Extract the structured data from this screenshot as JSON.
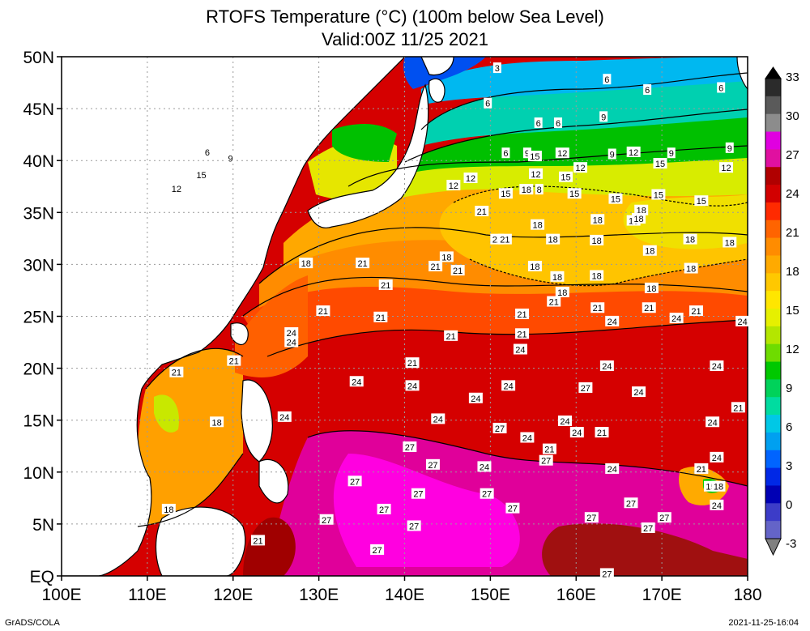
{
  "title_line1": "RTOFS Temperature (°C) (100m below Sea Level)",
  "title_line2": "Valid:00Z 11/25 2021",
  "footer_left": "GrADS/COLA",
  "footer_right": "2021-11-25-16:04",
  "map": {
    "lon_range": [
      100,
      180
    ],
    "lat_range": [
      0,
      50
    ],
    "lon_ticks": [
      "100E",
      "110E",
      "120E",
      "130E",
      "140E",
      "150E",
      "160E",
      "170E",
      "180"
    ],
    "lat_ticks": [
      "EQ",
      "5N",
      "10N",
      "15N",
      "20N",
      "25N",
      "30N",
      "35N",
      "40N",
      "45N",
      "50N"
    ],
    "grid": "dotted"
  },
  "colorbar": {
    "labels": [
      "33",
      "30",
      "27",
      "24",
      "21",
      "18",
      "15",
      "12",
      "9",
      "6",
      "3",
      "0",
      "-3"
    ],
    "colors": [
      "#2b2b2b",
      "#5a5a5a",
      "#8c8c8c",
      "#e000e0",
      "#e010a0",
      "#b00000",
      "#d20000",
      "#ff2a00",
      "#ff6400",
      "#ff8c00",
      "#ffaa00",
      "#ffc800",
      "#ffe600",
      "#e6f000",
      "#b4e600",
      "#6edc00",
      "#00c800",
      "#00d25a",
      "#00dca0",
      "#00c8e6",
      "#00a0f0",
      "#0064ff",
      "#0028e6",
      "#0000b4",
      "#3c3cc8",
      "#6464c8"
    ]
  },
  "contour_labels": [
    {
      "v": "3",
      "lon": 150.8,
      "lat": 48.9
    },
    {
      "v": "6",
      "lon": 149.7,
      "lat": 45.5
    },
    {
      "v": "6",
      "lon": 163.6,
      "lat": 47.8
    },
    {
      "v": "6",
      "lon": 168.3,
      "lat": 46.8
    },
    {
      "v": "6",
      "lon": 176.9,
      "lat": 47
    },
    {
      "v": "6",
      "lon": 155.6,
      "lat": 43.6
    },
    {
      "v": "6",
      "lon": 157.9,
      "lat": 43.6
    },
    {
      "v": "9",
      "lon": 163.2,
      "lat": 44.2
    },
    {
      "v": "6",
      "lon": 117,
      "lat": 40.8
    },
    {
      "v": "9",
      "lon": 119.7,
      "lat": 40.2
    },
    {
      "v": "15",
      "lon": 116.3,
      "lat": 38.6
    },
    {
      "v": "12",
      "lon": 113.4,
      "lat": 37.3
    },
    {
      "v": "6",
      "lon": 151.8,
      "lat": 40.7
    },
    {
      "v": "9",
      "lon": 154.3,
      "lat": 40.7
    },
    {
      "v": "15",
      "lon": 155.2,
      "lat": 40.4
    },
    {
      "v": "12",
      "lon": 158.4,
      "lat": 40.7
    },
    {
      "v": "9",
      "lon": 164.2,
      "lat": 40.6
    },
    {
      "v": "12",
      "lon": 166.7,
      "lat": 40.8
    },
    {
      "v": "9",
      "lon": 171.1,
      "lat": 40.7
    },
    {
      "v": "15",
      "lon": 169.8,
      "lat": 39.7
    },
    {
      "v": "9",
      "lon": 177.9,
      "lat": 41.2
    },
    {
      "v": "12",
      "lon": 177.5,
      "lat": 39.3
    },
    {
      "v": "12",
      "lon": 155.3,
      "lat": 38.7
    },
    {
      "v": "15",
      "lon": 158.8,
      "lat": 38.4
    },
    {
      "v": "12",
      "lon": 160.5,
      "lat": 39.3
    },
    {
      "v": "12",
      "lon": 145.7,
      "lat": 37.6
    },
    {
      "v": "12",
      "lon": 147.7,
      "lat": 38.3
    },
    {
      "v": "15",
      "lon": 151.8,
      "lat": 36.8
    },
    {
      "v": "18",
      "lon": 154.2,
      "lat": 37.2
    },
    {
      "v": "8",
      "lon": 155.7,
      "lat": 37.2
    },
    {
      "v": "15",
      "lon": 159.8,
      "lat": 36.8
    },
    {
      "v": "15",
      "lon": 164.6,
      "lat": 36.3
    },
    {
      "v": "15",
      "lon": 169.6,
      "lat": 36.7
    },
    {
      "v": "15",
      "lon": 174.6,
      "lat": 36.1
    },
    {
      "v": "18",
      "lon": 167.6,
      "lat": 35.2
    },
    {
      "v": "21",
      "lon": 149,
      "lat": 35.1
    },
    {
      "v": "18",
      "lon": 162.5,
      "lat": 34.3
    },
    {
      "v": "18",
      "lon": 166.7,
      "lat": 34.2
    },
    {
      "v": "18",
      "lon": 167.3,
      "lat": 34.4
    },
    {
      "v": "18",
      "lon": 155.5,
      "lat": 33.8
    },
    {
      "v": "18",
      "lon": 157.3,
      "lat": 32.4
    },
    {
      "v": "18",
      "lon": 162.4,
      "lat": 32.3
    },
    {
      "v": "21",
      "lon": 150.8,
      "lat": 32.4
    },
    {
      "v": "21",
      "lon": 151.7,
      "lat": 32.4
    },
    {
      "v": "18",
      "lon": 173.3,
      "lat": 32.4
    },
    {
      "v": "18",
      "lon": 177.9,
      "lat": 32.1
    },
    {
      "v": "18",
      "lon": 168.6,
      "lat": 31.3
    },
    {
      "v": "18",
      "lon": 144.9,
      "lat": 30.7
    },
    {
      "v": "21",
      "lon": 143.6,
      "lat": 29.8
    },
    {
      "v": "21",
      "lon": 146.2,
      "lat": 29.4
    },
    {
      "v": "21",
      "lon": 135.1,
      "lat": 30.1
    },
    {
      "v": "18",
      "lon": 128.5,
      "lat": 30.1
    },
    {
      "v": "18",
      "lon": 155.2,
      "lat": 29.8
    },
    {
      "v": "18",
      "lon": 173.4,
      "lat": 29.6
    },
    {
      "v": "18",
      "lon": 157.8,
      "lat": 28.8
    },
    {
      "v": "18",
      "lon": 162.4,
      "lat": 28.9
    },
    {
      "v": "18",
      "lon": 158.4,
      "lat": 27.3
    },
    {
      "v": "21",
      "lon": 137.8,
      "lat": 28
    },
    {
      "v": "18",
      "lon": 168.8,
      "lat": 27.7
    },
    {
      "v": "21",
      "lon": 157.4,
      "lat": 26.4
    },
    {
      "v": "21",
      "lon": 162.5,
      "lat": 25.8
    },
    {
      "v": "21",
      "lon": 168.5,
      "lat": 25.8
    },
    {
      "v": "21",
      "lon": 130.5,
      "lat": 25.5
    },
    {
      "v": "21",
      "lon": 153.7,
      "lat": 25.2
    },
    {
      "v": "21",
      "lon": 174,
      "lat": 25.5
    },
    {
      "v": "21",
      "lon": 137.2,
      "lat": 24.9
    },
    {
      "v": "24",
      "lon": 164.2,
      "lat": 24.5
    },
    {
      "v": "24",
      "lon": 171.7,
      "lat": 24.8
    },
    {
      "v": "24",
      "lon": 179.4,
      "lat": 24.5
    },
    {
      "v": "24",
      "lon": 126.8,
      "lat": 23.4
    },
    {
      "v": "21",
      "lon": 153.7,
      "lat": 23.3
    },
    {
      "v": "24",
      "lon": 126.8,
      "lat": 22.5
    },
    {
      "v": "21",
      "lon": 145.4,
      "lat": 23.1
    },
    {
      "v": "24",
      "lon": 153.5,
      "lat": 21.8
    },
    {
      "v": "21",
      "lon": 120.1,
      "lat": 20.7
    },
    {
      "v": "21",
      "lon": 140.9,
      "lat": 20.5
    },
    {
      "v": "24",
      "lon": 163.6,
      "lat": 20.2
    },
    {
      "v": "24",
      "lon": 176.4,
      "lat": 20.2
    },
    {
      "v": "21",
      "lon": 113.4,
      "lat": 19.6
    },
    {
      "v": "24",
      "lon": 134.4,
      "lat": 18.7
    },
    {
      "v": "24",
      "lon": 140.9,
      "lat": 18.3
    },
    {
      "v": "24",
      "lon": 152.1,
      "lat": 18.3
    },
    {
      "v": "27",
      "lon": 161.1,
      "lat": 18.1
    },
    {
      "v": "24",
      "lon": 167.3,
      "lat": 17.7
    },
    {
      "v": "24",
      "lon": 148.3,
      "lat": 17.1
    },
    {
      "v": "21",
      "lon": 178.9,
      "lat": 16.2
    },
    {
      "v": "24",
      "lon": 126,
      "lat": 15.3
    },
    {
      "v": "24",
      "lon": 143.9,
      "lat": 15.1
    },
    {
      "v": "18",
      "lon": 118.1,
      "lat": 14.8
    },
    {
      "v": "24",
      "lon": 158.7,
      "lat": 14.9
    },
    {
      "v": "24",
      "lon": 175.9,
      "lat": 14.8
    },
    {
      "v": "27",
      "lon": 151.1,
      "lat": 14.2
    },
    {
      "v": "24",
      "lon": 160.1,
      "lat": 13.8
    },
    {
      "v": "21",
      "lon": 163,
      "lat": 13.8
    },
    {
      "v": "24",
      "lon": 154.3,
      "lat": 13.3
    },
    {
      "v": "24",
      "lon": 176.4,
      "lat": 11.4
    },
    {
      "v": "27",
      "lon": 140.6,
      "lat": 12.4
    },
    {
      "v": "21",
      "lon": 156.9,
      "lat": 12.2
    },
    {
      "v": "27",
      "lon": 156.5,
      "lat": 11.1
    },
    {
      "v": "27",
      "lon": 143.3,
      "lat": 10.7
    },
    {
      "v": "24",
      "lon": 149.3,
      "lat": 10.5
    },
    {
      "v": "24",
      "lon": 164.2,
      "lat": 10.3
    },
    {
      "v": "21",
      "lon": 174.6,
      "lat": 10.3
    },
    {
      "v": "27",
      "lon": 134.2,
      "lat": 9.1
    },
    {
      "v": "27",
      "lon": 141.6,
      "lat": 7.9
    },
    {
      "v": "27",
      "lon": 149.6,
      "lat": 7.9
    },
    {
      "v": "15",
      "lon": 175.7,
      "lat": 8.6
    },
    {
      "v": "18",
      "lon": 176.6,
      "lat": 8.6
    },
    {
      "v": "27",
      "lon": 166.4,
      "lat": 7
    },
    {
      "v": "24",
      "lon": 176.4,
      "lat": 6.8
    },
    {
      "v": "27",
      "lon": 137.6,
      "lat": 6.4
    },
    {
      "v": "27",
      "lon": 152.6,
      "lat": 6.5
    },
    {
      "v": "18",
      "lon": 112.5,
      "lat": 6.4
    },
    {
      "v": "27",
      "lon": 161.8,
      "lat": 5.6
    },
    {
      "v": "27",
      "lon": 170.3,
      "lat": 5.6
    },
    {
      "v": "27",
      "lon": 130.9,
      "lat": 5.4
    },
    {
      "v": "27",
      "lon": 141.1,
      "lat": 4.8
    },
    {
      "v": "27",
      "lon": 168.4,
      "lat": 4.6
    },
    {
      "v": "21",
      "lon": 122.9,
      "lat": 3.4
    },
    {
      "v": "27",
      "lon": 136.8,
      "lat": 2.5
    },
    {
      "v": "27",
      "lon": 163.6,
      "lat": 0.2
    }
  ]
}
